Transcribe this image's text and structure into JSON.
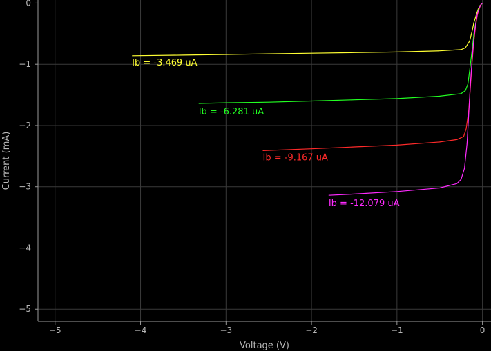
{
  "chart_data": {
    "type": "line",
    "title": "",
    "xlabel": "Voltage (V)",
    "ylabel": "Current (mA)",
    "xlim": [
      -5.2,
      0.1
    ],
    "ylim": [
      -5.2,
      0.05
    ],
    "x_ticks": [
      -5,
      -4,
      -3,
      -2,
      -1,
      0
    ],
    "y_ticks": [
      0,
      -1,
      -2,
      -3,
      -4,
      -5
    ],
    "grid": true,
    "background": "#000000",
    "grid_color": "#3a3a3a",
    "axis_color": "#9a9a9a",
    "series": [
      {
        "name": "Ib = -3.469 uA",
        "color": "#ffff33",
        "label_anchor": [
          -4.1,
          -1.02
        ],
        "x": [
          -4.1,
          -3.5,
          -3.0,
          -2.5,
          -2.0,
          -1.5,
          -1.0,
          -0.5,
          -0.25,
          -0.2,
          -0.15,
          -0.12,
          -0.1,
          -0.07,
          -0.05,
          -0.03,
          0.0
        ],
        "y": [
          -0.86,
          -0.85,
          -0.84,
          -0.83,
          -0.82,
          -0.81,
          -0.8,
          -0.78,
          -0.76,
          -0.73,
          -0.62,
          -0.45,
          -0.32,
          -0.18,
          -0.1,
          -0.04,
          0.0
        ]
      },
      {
        "name": "Ib = -6.281 uA",
        "color": "#22ff22",
        "label_anchor": [
          -3.32,
          -1.82
        ],
        "x": [
          -3.32,
          -3.0,
          -2.5,
          -2.0,
          -1.5,
          -1.0,
          -0.5,
          -0.25,
          -0.2,
          -0.17,
          -0.15,
          -0.12,
          -0.1,
          -0.07,
          -0.05,
          -0.03,
          0.0
        ],
        "y": [
          -1.64,
          -1.63,
          -1.62,
          -1.6,
          -1.58,
          -1.56,
          -1.52,
          -1.48,
          -1.43,
          -1.32,
          -1.1,
          -0.75,
          -0.5,
          -0.25,
          -0.12,
          -0.05,
          0.0
        ]
      },
      {
        "name": "Ib = -9.167 uA",
        "color": "#ff2a2a",
        "label_anchor": [
          -2.57,
          -2.57
        ],
        "x": [
          -2.57,
          -2.0,
          -1.5,
          -1.0,
          -0.5,
          -0.3,
          -0.22,
          -0.19,
          -0.16,
          -0.14,
          -0.12,
          -0.1,
          -0.08,
          -0.06,
          -0.04,
          -0.02,
          0.0
        ],
        "y": [
          -2.41,
          -2.38,
          -2.35,
          -2.32,
          -2.27,
          -2.23,
          -2.18,
          -2.05,
          -1.75,
          -1.35,
          -0.95,
          -0.62,
          -0.38,
          -0.2,
          -0.1,
          -0.03,
          0.0
        ]
      },
      {
        "name": "Ib = -12.079 uA",
        "color": "#ff2aff",
        "label_anchor": [
          -1.8,
          -3.32
        ],
        "x": [
          -1.8,
          -1.5,
          -1.0,
          -0.5,
          -0.3,
          -0.25,
          -0.21,
          -0.18,
          -0.16,
          -0.14,
          -0.12,
          -0.1,
          -0.08,
          -0.06,
          -0.04,
          -0.02,
          0.0
        ],
        "y": [
          -3.14,
          -3.12,
          -3.08,
          -3.02,
          -2.95,
          -2.88,
          -2.7,
          -2.3,
          -1.8,
          -1.3,
          -0.9,
          -0.58,
          -0.35,
          -0.18,
          -0.09,
          -0.03,
          0.0
        ]
      }
    ]
  }
}
